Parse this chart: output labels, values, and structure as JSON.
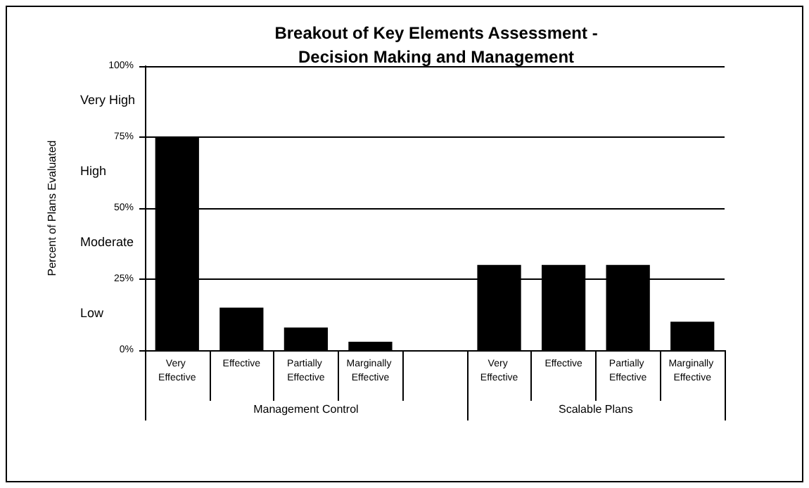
{
  "chart_data": {
    "type": "bar",
    "title": "Breakout of Key Elements Assessment -\nDecision Making and Management",
    "ylabel": "Percent of Plans Evaluated",
    "categories": [
      "Very Effective",
      "Effective",
      "Partially Effective",
      "Marginally Effective",
      null,
      "Very Effective",
      "Effective",
      "Partially Effective",
      "Marginally Effective"
    ],
    "values": [
      75,
      15,
      8,
      3,
      null,
      30,
      30,
      30,
      10
    ],
    "color": "#000000",
    "ylim": [
      0,
      100
    ],
    "yticks": [
      {
        "value": 0,
        "label": "0%"
      },
      {
        "value": 25,
        "label": "25%"
      },
      {
        "value": 50,
        "label": "50%"
      },
      {
        "value": 75,
        "label": "75%"
      },
      {
        "value": 100,
        "label": "100%"
      }
    ],
    "grid": "y",
    "annotations": [
      "Very High",
      "High",
      "Moderate",
      "Low",
      "Management Control",
      "Scalable Plans"
    ]
  }
}
